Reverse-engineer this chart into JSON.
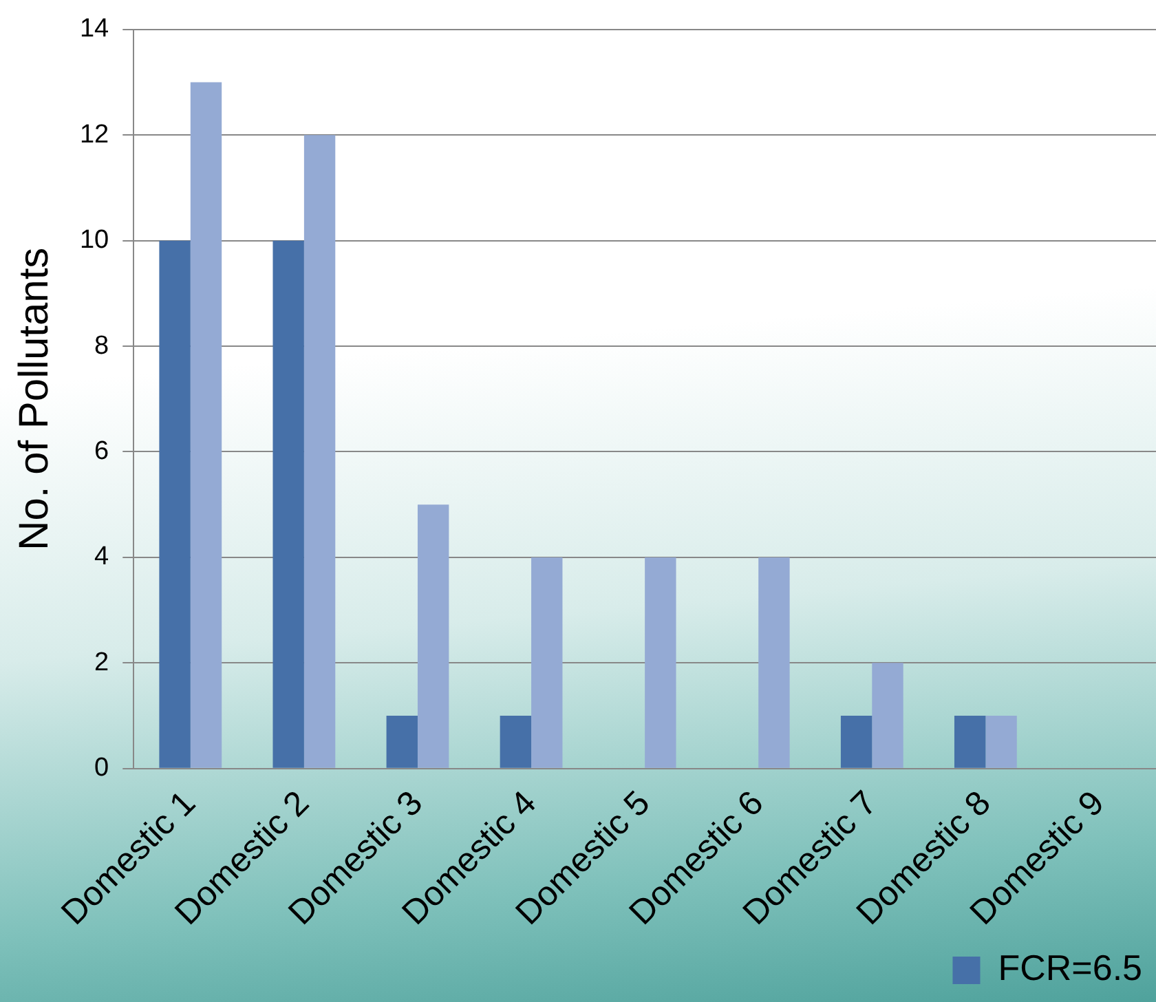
{
  "chart_data": {
    "type": "bar",
    "ylabel": "No. of Pollutants",
    "categories": [
      "Domestic 1",
      "Domestic 2",
      "Domestic 3",
      "Domestic 4",
      "Domestic 5",
      "Domestic 6",
      "Domestic 7",
      "Domestic 8",
      "Domestic 9"
    ],
    "series": [
      {
        "name": "FCR=6.5",
        "color": "#4670a8",
        "values": [
          10,
          10,
          1,
          1,
          0,
          0,
          1,
          1,
          0
        ]
      },
      {
        "color": "#94aad4",
        "values": [
          13,
          12,
          5,
          4,
          4,
          4,
          2,
          1,
          0
        ]
      }
    ],
    "ylim": [
      0,
      14
    ],
    "yticks": [
      0,
      2,
      4,
      6,
      8,
      10,
      12,
      14
    ],
    "grid": "y",
    "legend": "bottom right"
  }
}
